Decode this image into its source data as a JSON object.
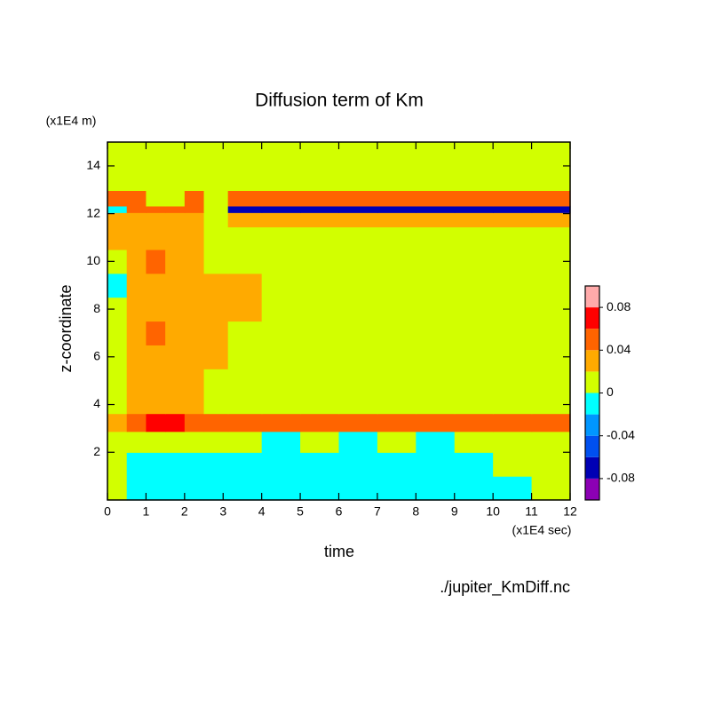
{
  "chart_data": {
    "type": "heatmap",
    "title": "Diffusion term of Km",
    "xlabel": "time",
    "ylabel": "z-coordinate",
    "xunit": "(x1E4 sec)",
    "yunit": "(x1E4 m)",
    "source": "./jupiter_KmDiff.nc",
    "xlim": [
      0,
      12
    ],
    "ylim": [
      0,
      15
    ],
    "xticks": [
      0,
      1,
      2,
      3,
      4,
      5,
      6,
      7,
      8,
      9,
      10,
      11,
      12
    ],
    "yticks": [
      2,
      4,
      6,
      8,
      10,
      12,
      14
    ],
    "x": [
      0.25,
      0.75,
      1.25,
      1.75,
      2.25,
      2.75,
      3.5,
      4.5,
      5.5,
      6.5,
      7.5,
      8.5,
      9.5,
      10.5,
      11.5
    ],
    "y": [
      0.5,
      1.5,
      2.5,
      3.25,
      4,
      5,
      6,
      7,
      8,
      9,
      10,
      11,
      11.9,
      12.2,
      12.45,
      13.5,
      14.5
    ],
    "values": [
      [
        0.01,
        -0.01,
        -0.01,
        -0.01,
        -0.01,
        -0.01,
        -0.01,
        -0.01,
        -0.01,
        -0.01,
        -0.01,
        -0.01,
        -0.01,
        -0.01,
        0.01
      ],
      [
        0.01,
        -0.01,
        -0.01,
        -0.01,
        -0.01,
        -0.01,
        -0.01,
        -0.01,
        -0.01,
        -0.01,
        -0.01,
        -0.01,
        -0.01,
        0.01,
        0.01
      ],
      [
        0.01,
        0.01,
        0.01,
        0.01,
        0.01,
        0.01,
        0.01,
        -0.01,
        0.01,
        -0.01,
        0.01,
        -0.01,
        0.01,
        0.01,
        0.01
      ],
      [
        0.03,
        0.05,
        0.07,
        0.07,
        0.05,
        0.05,
        0.05,
        0.05,
        0.05,
        0.05,
        0.05,
        0.05,
        0.05,
        0.05,
        0.05
      ],
      [
        0.01,
        0.03,
        0.03,
        0.03,
        0.03,
        0.01,
        0.01,
        0.01,
        0.01,
        0.01,
        0.01,
        0.01,
        0.01,
        0.01,
        0.01
      ],
      [
        0.01,
        0.03,
        0.03,
        0.03,
        0.03,
        0.01,
        0.01,
        0.01,
        0.01,
        0.01,
        0.01,
        0.01,
        0.01,
        0.01,
        0.01
      ],
      [
        0.01,
        0.03,
        0.03,
        0.03,
        0.03,
        0.03,
        0.01,
        0.01,
        0.01,
        0.01,
        0.01,
        0.01,
        0.01,
        0.01,
        0.01
      ],
      [
        0.01,
        0.03,
        0.05,
        0.03,
        0.03,
        0.03,
        0.01,
        0.01,
        0.01,
        0.01,
        0.01,
        0.01,
        0.01,
        0.01,
        0.01
      ],
      [
        0.01,
        0.03,
        0.03,
        0.03,
        0.03,
        0.03,
        0.03,
        0.01,
        0.01,
        0.01,
        0.01,
        0.01,
        0.01,
        0.01,
        0.01
      ],
      [
        -0.01,
        0.03,
        0.03,
        0.03,
        0.03,
        0.03,
        0.03,
        0.01,
        0.01,
        0.01,
        0.01,
        0.01,
        0.01,
        0.01,
        0.01
      ],
      [
        0.01,
        0.03,
        0.05,
        0.03,
        0.03,
        0.01,
        0.01,
        0.01,
        0.01,
        0.01,
        0.01,
        0.01,
        0.01,
        0.01,
        0.01
      ],
      [
        0.03,
        0.03,
        0.03,
        0.03,
        0.03,
        0.01,
        0.01,
        0.01,
        0.01,
        0.01,
        0.01,
        0.01,
        0.01,
        0.01,
        0.01
      ],
      [
        0.03,
        0.03,
        0.03,
        0.03,
        0.03,
        0.01,
        0.03,
        0.03,
        0.03,
        0.03,
        0.03,
        0.03,
        0.03,
        0.03,
        0.03
      ],
      [
        -0.01,
        0.05,
        0.05,
        0.05,
        0.05,
        0.01,
        -0.07,
        -0.07,
        -0.07,
        -0.07,
        -0.07,
        -0.07,
        -0.07,
        -0.07,
        -0.07
      ],
      [
        0.05,
        0.05,
        0.01,
        0.01,
        0.05,
        0.01,
        0.05,
        0.05,
        0.05,
        0.05,
        0.05,
        0.05,
        0.05,
        0.05,
        0.05
      ],
      [
        0.01,
        0.01,
        0.01,
        0.01,
        0.01,
        0.01,
        0.01,
        0.01,
        0.01,
        0.01,
        0.01,
        0.01,
        0.01,
        0.01,
        0.01
      ],
      [
        0.01,
        0.01,
        0.01,
        0.01,
        0.01,
        0.01,
        0.01,
        0.01,
        0.01,
        0.01,
        0.01,
        0.01,
        0.01,
        0.01,
        0.01
      ]
    ],
    "levels": [
      -0.1,
      -0.08,
      -0.06,
      -0.04,
      -0.02,
      0,
      0.02,
      0.04,
      0.06,
      0.08,
      0.1
    ],
    "level_colors": [
      "#8c00b4",
      "#0000b4",
      "#0050f0",
      "#0096ff",
      "#00ffff",
      "#d2ff00",
      "#ffaa00",
      "#ff6400",
      "#ff0000",
      "#ffaaaa"
    ],
    "colorbar_ticks": [
      -0.08,
      -0.04,
      0,
      0.04,
      0.08
    ]
  }
}
